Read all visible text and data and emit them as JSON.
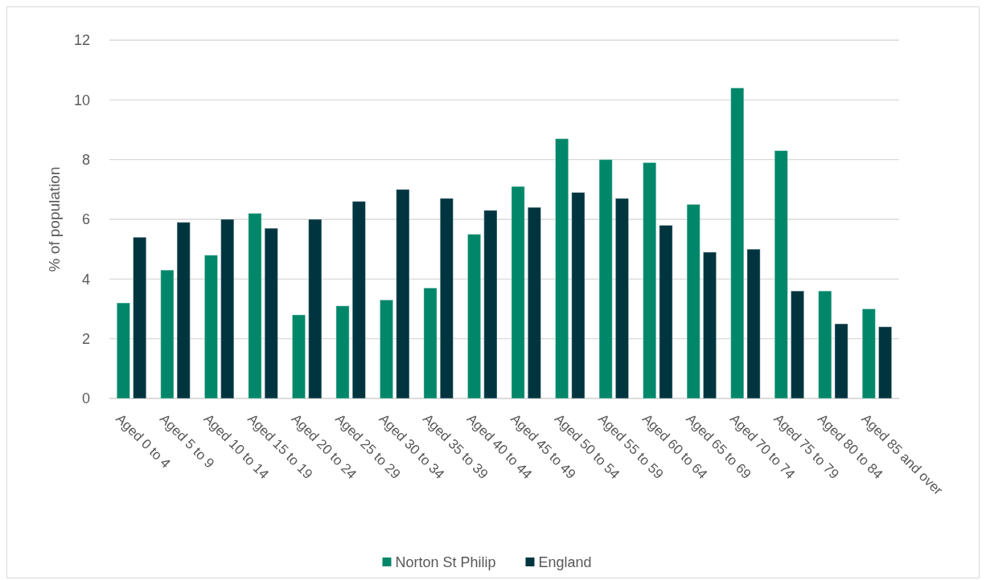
{
  "chart_data": {
    "type": "bar",
    "ylabel": "% of population",
    "categories": [
      "Aged 0 to 4",
      "Aged 5 to 9",
      "Aged 10 to 14",
      "Aged 15 to 19",
      "Aged 20 to 24",
      "Aged 25 to 29",
      "Aged 30 to 34",
      "Aged 35 to 39",
      "Aged 40 to 44",
      "Aged 45 to 49",
      "Aged 50 to 54",
      "Aged 55 to 59",
      "Aged 60 to 64",
      "Aged 65 to 69",
      "Aged 70 to 74",
      "Aged 75 to 79",
      "Aged 80 to 84",
      "Aged 85 and over"
    ],
    "series": [
      {
        "name": "Norton St Philip",
        "color": "#00876a",
        "values": [
          3.2,
          4.3,
          4.8,
          6.2,
          2.8,
          3.1,
          3.3,
          3.7,
          5.5,
          7.1,
          8.7,
          8.0,
          7.9,
          6.5,
          10.4,
          8.3,
          3.6,
          3.0
        ]
      },
      {
        "name": "England",
        "color": "#003540",
        "values": [
          5.4,
          5.9,
          6.0,
          5.7,
          6.0,
          6.6,
          7.0,
          6.7,
          6.3,
          6.4,
          6.9,
          6.7,
          5.8,
          4.9,
          5.0,
          3.6,
          2.5,
          2.4
        ]
      }
    ],
    "ylim": [
      0,
      12
    ],
    "yticks": [
      0,
      2,
      4,
      6,
      8,
      10,
      12
    ],
    "grid": "y",
    "legend": "bottom"
  }
}
